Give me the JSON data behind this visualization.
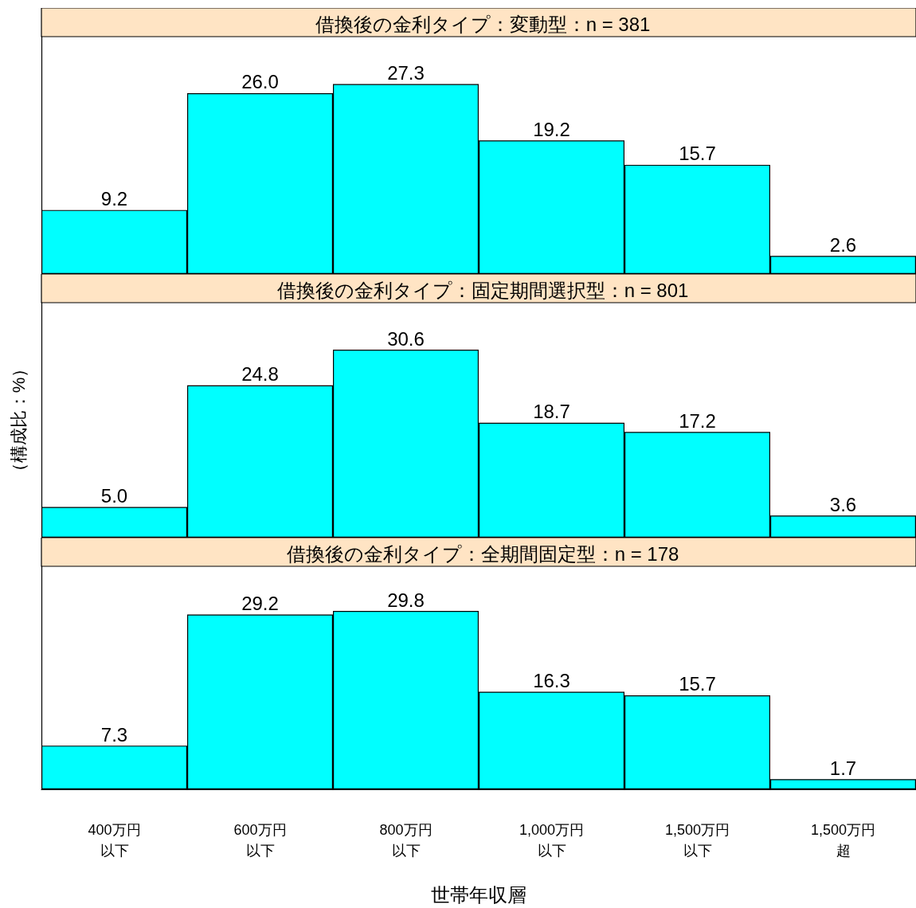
{
  "chart_data": [
    {
      "type": "bar",
      "title": "借換後の金利タイプ：変動型：n = 381",
      "categories": [
        null,
        null,
        null,
        null,
        null,
        null
      ],
      "values": [
        9.2,
        26.0,
        27.3,
        19.2,
        15.7,
        2.6
      ],
      "value_labels": [
        "9.2",
        "26.0",
        "27.3",
        "19.2",
        "15.7",
        "2.6"
      ],
      "color": "#00ffff",
      "tick_labels": false
    },
    {
      "type": "bar",
      "title": "借換後の金利タイプ：固定期間選択型：n = 801",
      "ylabel": "（構成比：%）",
      "categories": [
        null,
        null,
        null,
        null,
        null,
        null
      ],
      "values": [
        5.0,
        24.8,
        30.6,
        18.7,
        17.2,
        3.6
      ],
      "value_labels": [
        "5.0",
        "24.8",
        "30.6",
        "18.7",
        "17.2",
        "3.6"
      ],
      "color": "#00ffff",
      "tick_labels": false
    },
    {
      "type": "bar",
      "title": "借換後の金利タイプ：全期間固定型：n = 178",
      "xlabel": "世帯年収層",
      "categories": [
        "400万円以下",
        "600万円以下",
        "800万円以下",
        "1,000万円以下",
        "1,500万円以下",
        "1,500万円超"
      ],
      "values": [
        7.3,
        29.2,
        29.8,
        16.3,
        15.7,
        1.7
      ],
      "value_labels": [
        "7.3",
        "29.2",
        "29.8",
        "16.3",
        "15.7",
        "1.7"
      ],
      "color": "#00ffff",
      "tick_labels": "x"
    }
  ]
}
